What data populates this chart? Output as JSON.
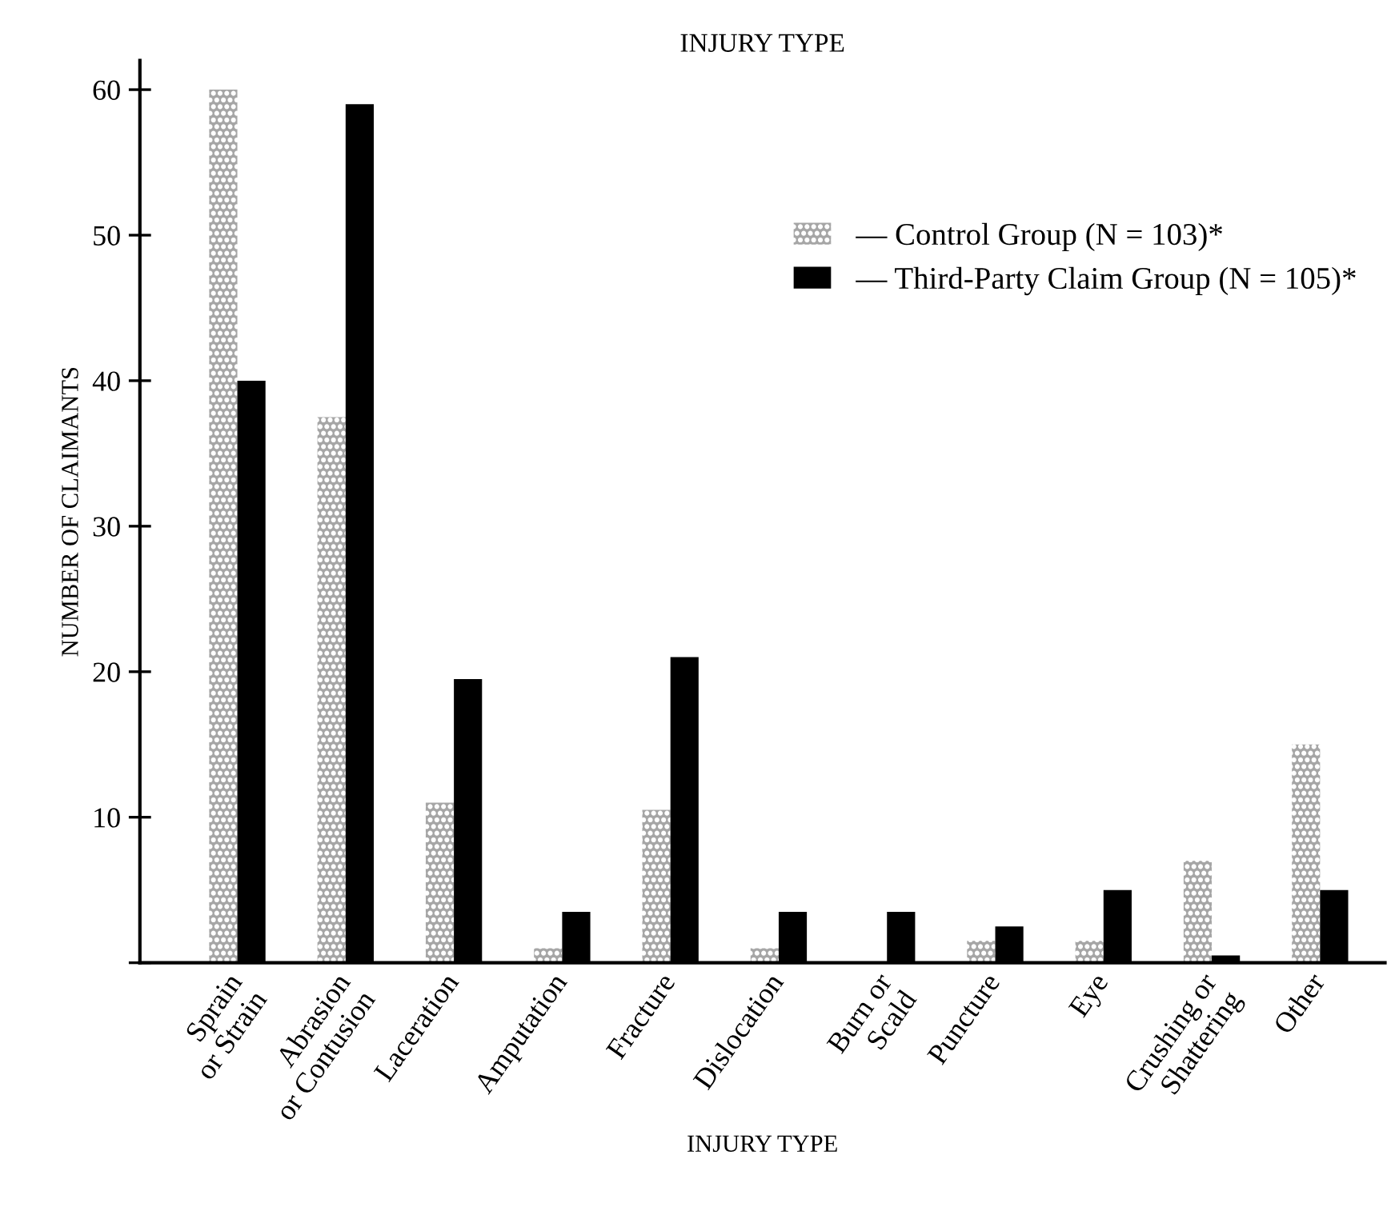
{
  "chart_data": {
    "type": "bar",
    "title": "INJURY TYPE",
    "xlabel": "INJURY TYPE",
    "ylabel": "NUMBER OF CLAIMANTS",
    "categories": [
      "Sprain\nor Strain",
      "Abrasion\nor Contusion",
      "Laceration",
      "Amputation",
      "Fracture",
      "Dislocation",
      "Burn or\nScald",
      "Puncture",
      "Eye",
      "Crushing or\nShattering",
      "Other"
    ],
    "series": [
      {
        "name": "— Control Group (N = 103)*",
        "color": "#a6a6a6",
        "values": [
          60,
          37.5,
          11,
          1,
          10.5,
          1,
          0,
          1.5,
          1.5,
          7,
          15
        ]
      },
      {
        "name": "— Third-Party Claim Group (N = 105)*",
        "color": "#000000",
        "values": [
          40,
          59,
          19.5,
          3.5,
          21,
          3.5,
          3.5,
          2.5,
          5,
          0.5,
          5
        ]
      }
    ],
    "ylim": [
      0,
      62
    ],
    "yticks": [
      {
        "value": 0,
        "label": null
      },
      10,
      20,
      30,
      40,
      50,
      60
    ],
    "grid": false,
    "legend": "right"
  }
}
